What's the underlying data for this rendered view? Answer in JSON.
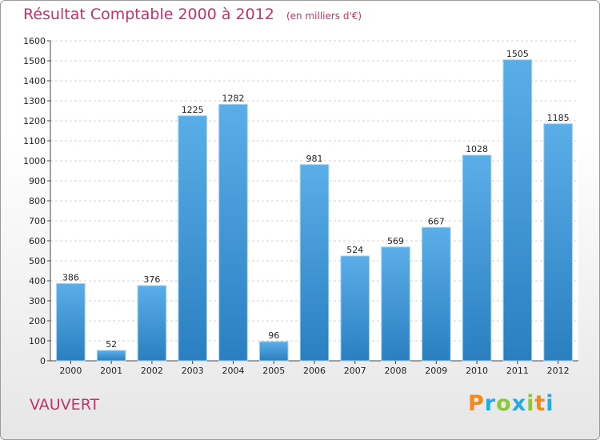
{
  "header": {
    "title": "Résultat Comptable 2000 à 2012",
    "subtitle": "(en milliers d'€)"
  },
  "footer": {
    "commune": "VAUVERT",
    "logo_text": "Proxiti"
  },
  "colors": {
    "bar_light": "#5aaee8",
    "bar_dark": "#2a7fc0",
    "title": "#c0336a",
    "logo_p": "#f08a1c",
    "logo_r": "#2aa8e0",
    "logo_o": "#8cc63f",
    "logo_x": "#2aa8e0",
    "logo_i": "#8cc63f",
    "logo_t": "#f08a1c",
    "logo_i2": "#2aa8e0"
  },
  "chart_data": {
    "type": "bar",
    "title": "Résultat Comptable 2000 à 2012",
    "subtitle": "(en milliers d'€)",
    "categories": [
      "2000",
      "2001",
      "2002",
      "2003",
      "2004",
      "2005",
      "2006",
      "2007",
      "2008",
      "2009",
      "2010",
      "2011",
      "2012"
    ],
    "values": [
      386,
      52,
      376,
      1225,
      1282,
      96,
      981,
      524,
      569,
      667,
      1028,
      1505,
      1185
    ],
    "ylim": [
      0,
      1600
    ],
    "yticks": [
      0,
      100,
      200,
      300,
      400,
      500,
      600,
      700,
      800,
      900,
      1000,
      1100,
      1200,
      1300,
      1400,
      1500,
      1600
    ],
    "grid": true,
    "data_labels": true,
    "xlabel": "",
    "ylabel": ""
  }
}
